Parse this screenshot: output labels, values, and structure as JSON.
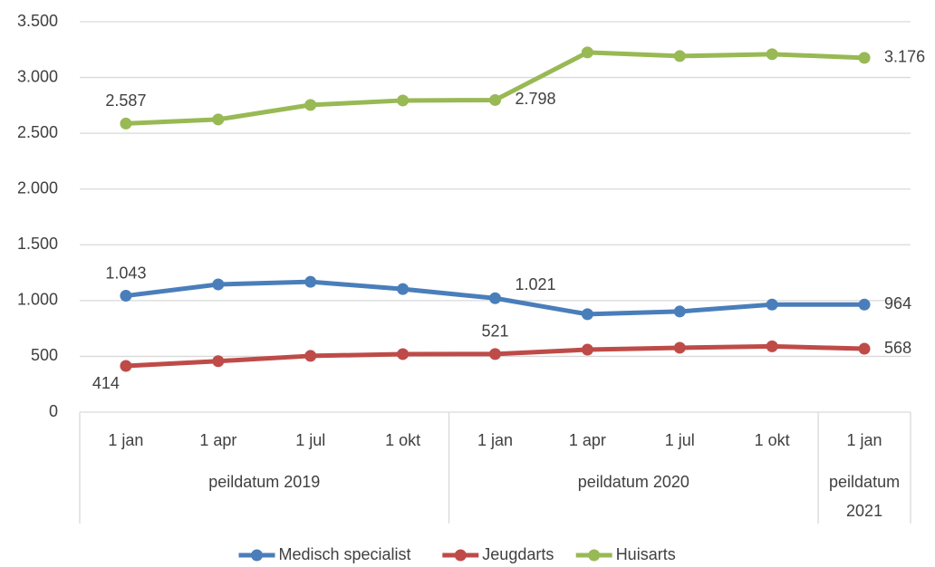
{
  "chart_data": {
    "type": "line",
    "categories": [
      "1 jan",
      "1 apr",
      "1 jul",
      "1 okt",
      "1 jan",
      "1 apr",
      "1 jul",
      "1 okt",
      "1 jan"
    ],
    "category_groups": [
      {
        "label": "peildatum 2019",
        "count": 4
      },
      {
        "label": "peildatum 2020",
        "count": 4
      },
      {
        "label": "peildatum 2021",
        "count": 1
      }
    ],
    "series": [
      {
        "name": "Medisch specialist",
        "color": "#4a7ebb",
        "values": [
          1043,
          1145,
          1168,
          1103,
          1021,
          878,
          902,
          964,
          964
        ],
        "value_labels": [
          "1.043",
          null,
          null,
          null,
          "1.021",
          null,
          null,
          null,
          "964"
        ]
      },
      {
        "name": "Jeugdarts",
        "color": "#be4b48",
        "values": [
          414,
          457,
          504,
          520,
          521,
          560,
          577,
          590,
          568
        ],
        "value_labels": [
          "414",
          null,
          null,
          null,
          "521",
          null,
          null,
          null,
          "568"
        ]
      },
      {
        "name": "Huisarts",
        "color": "#98b954",
        "values": [
          2587,
          2624,
          2754,
          2794,
          2798,
          3225,
          3192,
          3209,
          3176
        ],
        "value_labels": [
          "2.587",
          null,
          null,
          null,
          "2.798",
          null,
          null,
          null,
          "3.176"
        ]
      }
    ],
    "ylim": [
      0,
      3500
    ],
    "yticks": [
      0,
      500,
      {
        "value": 1000,
        "label": "1.000"
      },
      {
        "value": 1500,
        "label": "1.500"
      },
      {
        "value": 2000,
        "label": "2.000"
      },
      {
        "value": 2500,
        "label": "2.500"
      },
      {
        "value": 3000,
        "label": "3.000"
      },
      {
        "value": 3500,
        "label": "3.500"
      }
    ],
    "grid": true,
    "legend": "bottom"
  }
}
